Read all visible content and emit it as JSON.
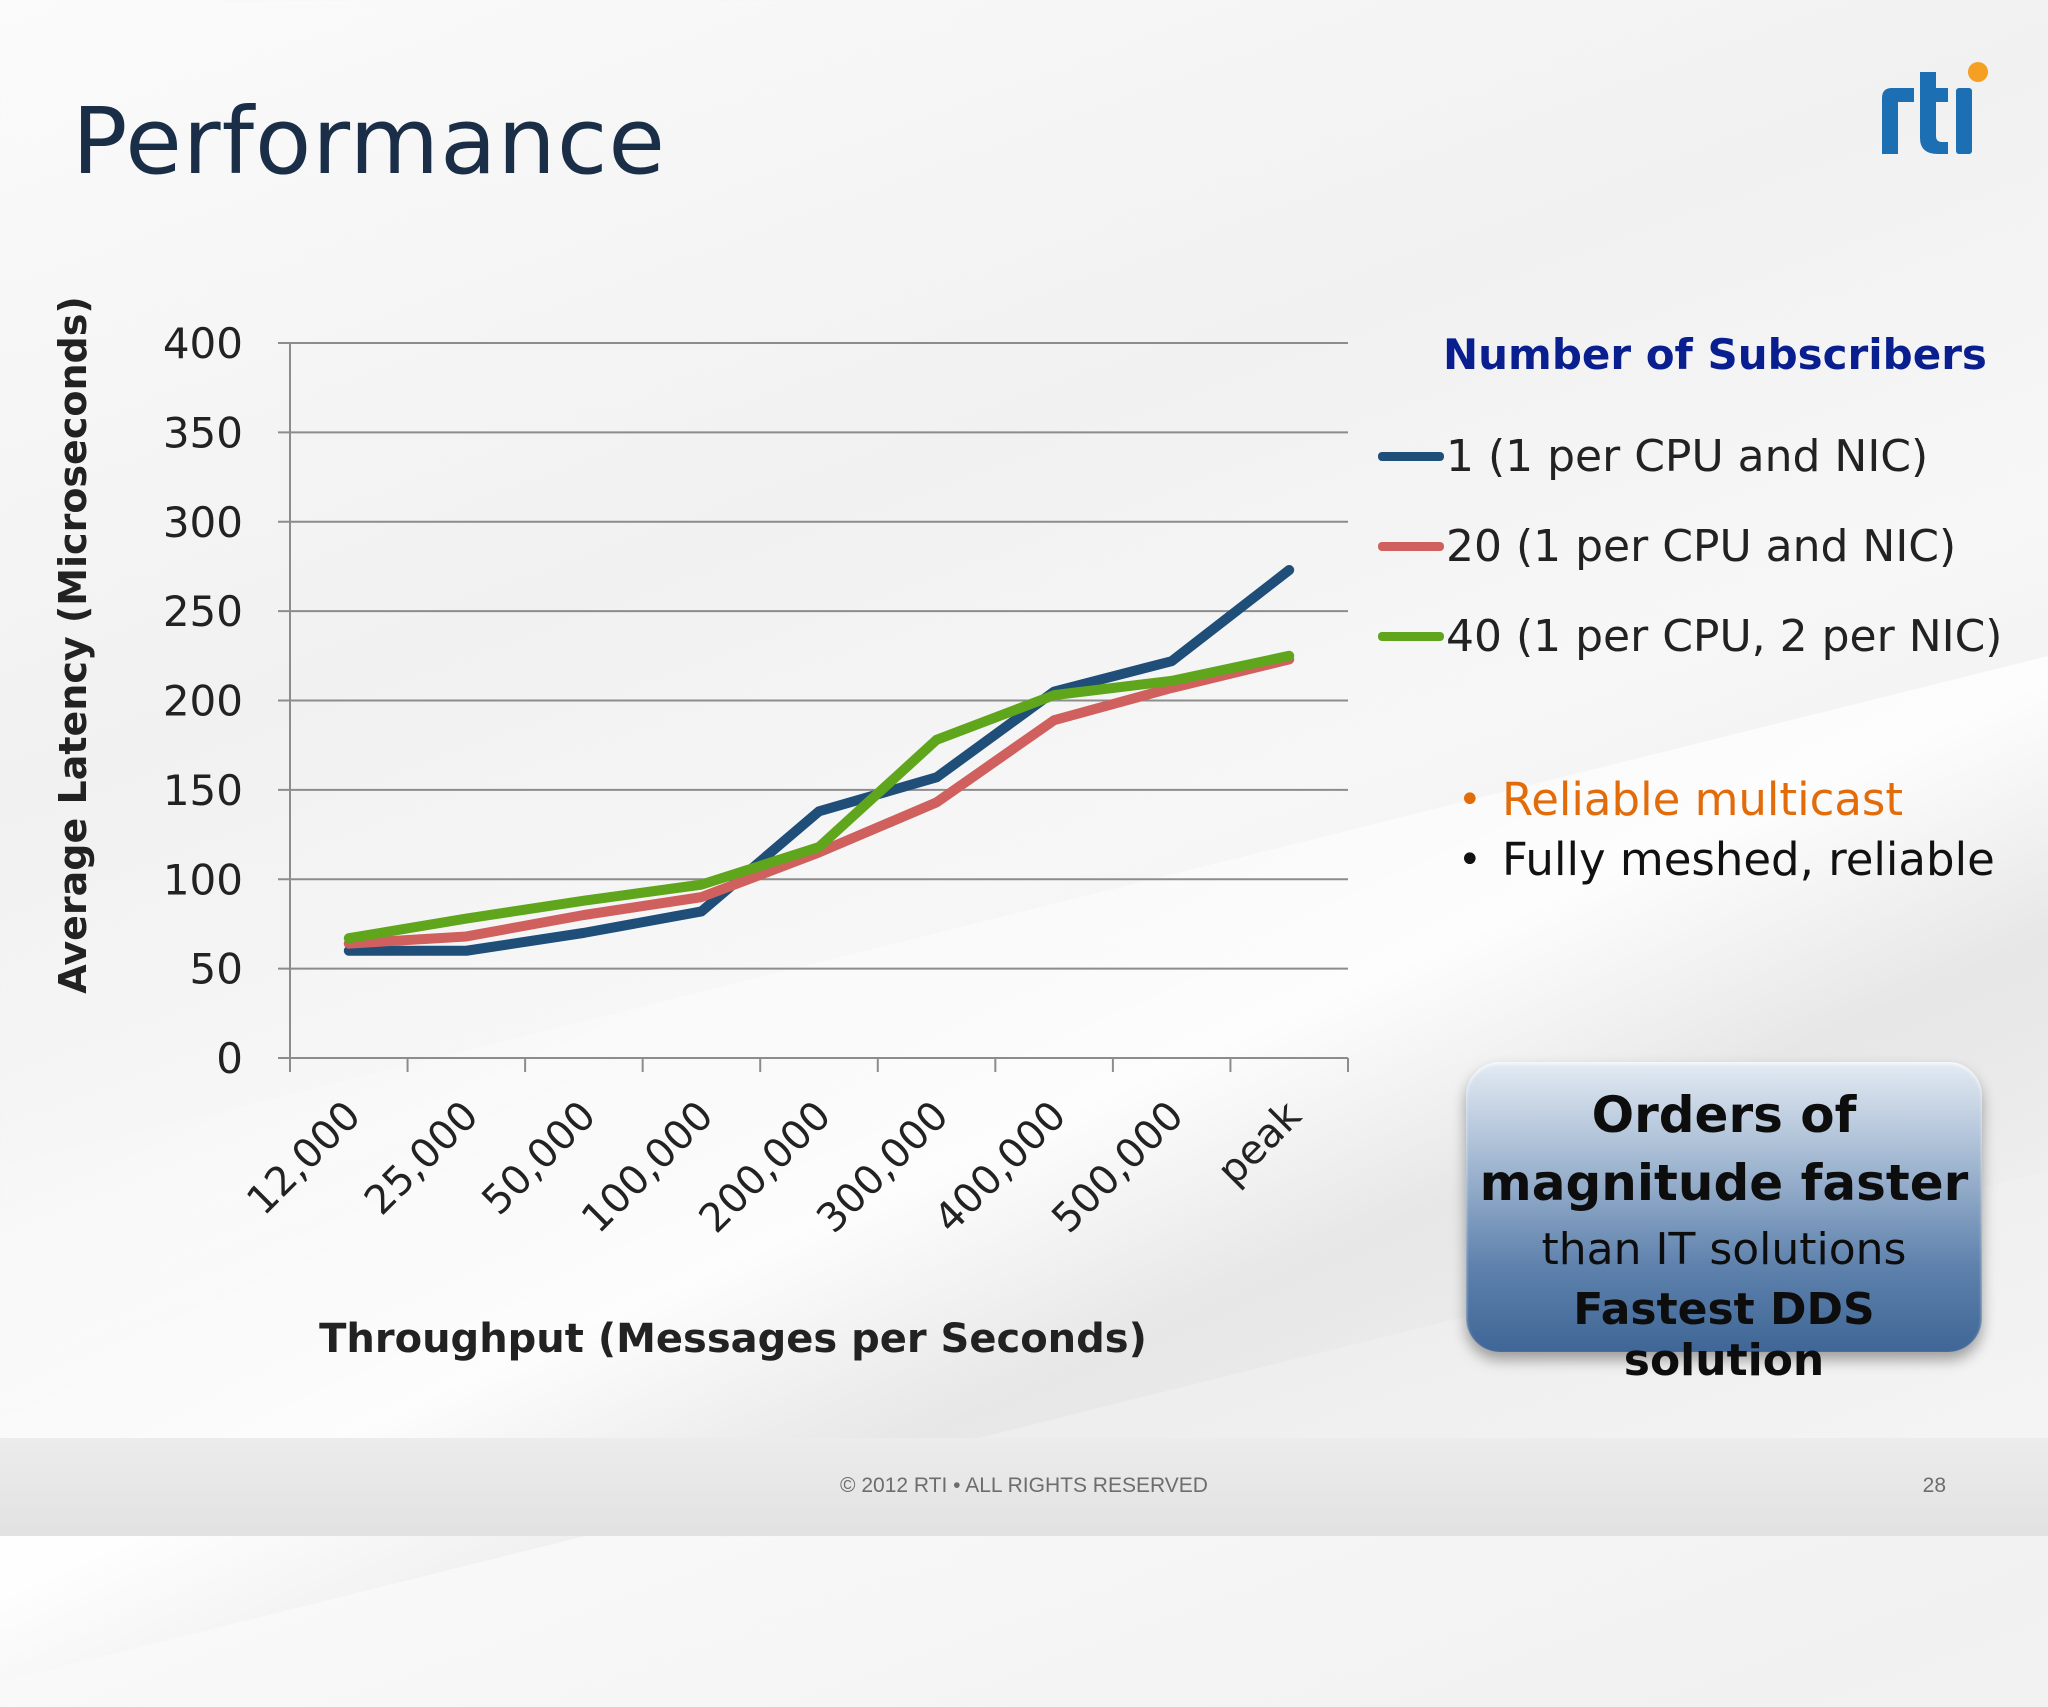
{
  "slide": {
    "title": "Performance",
    "footer": "© 2012 RTI • ALL RIGHTS RESERVED",
    "page_number": "28"
  },
  "legend": {
    "title": "Number of Subscribers"
  },
  "notes": [
    {
      "text": "Reliable multicast",
      "color": "#e36c0a"
    },
    {
      "text": "Fully meshed, reliable",
      "color": "#111111"
    }
  ],
  "callout": {
    "line1": "Orders of",
    "line2": "magnitude faster",
    "line3": "than IT solutions",
    "line4": "Fastest DDS solution"
  },
  "colors": {
    "title": "#1a2e47",
    "logo_blue": "#1c6fb2",
    "logo_dot": "#f5a023"
  },
  "chart_data": {
    "type": "line",
    "xlabel": "Throughput (Messages per Seconds)",
    "ylabel": "Average Latency (Microseconds)",
    "ylim": [
      0,
      400
    ],
    "yticks": [
      0,
      50,
      100,
      150,
      200,
      250,
      300,
      350,
      400
    ],
    "grid": true,
    "legend_position": "right",
    "categories": [
      "12,000",
      "25,000",
      "50,000",
      "100,000",
      "200,000",
      "300,000",
      "400,000",
      "500,000",
      "peak"
    ],
    "series": [
      {
        "name": "1 (1 per CPU and NIC)",
        "color": "#1f4e79",
        "values": [
          60,
          60,
          70,
          82,
          138,
          157,
          205,
          222,
          273
        ]
      },
      {
        "name": "20 (1 per CPU and NIC)",
        "color": "#d0605e",
        "values": [
          64,
          68,
          80,
          90,
          115,
          143,
          189,
          207,
          223
        ]
      },
      {
        "name": "40 (1 per CPU, 2 per NIC)",
        "color": "#5fa61c",
        "values": [
          67,
          78,
          88,
          97,
          118,
          178,
          203,
          211,
          225
        ]
      }
    ]
  }
}
